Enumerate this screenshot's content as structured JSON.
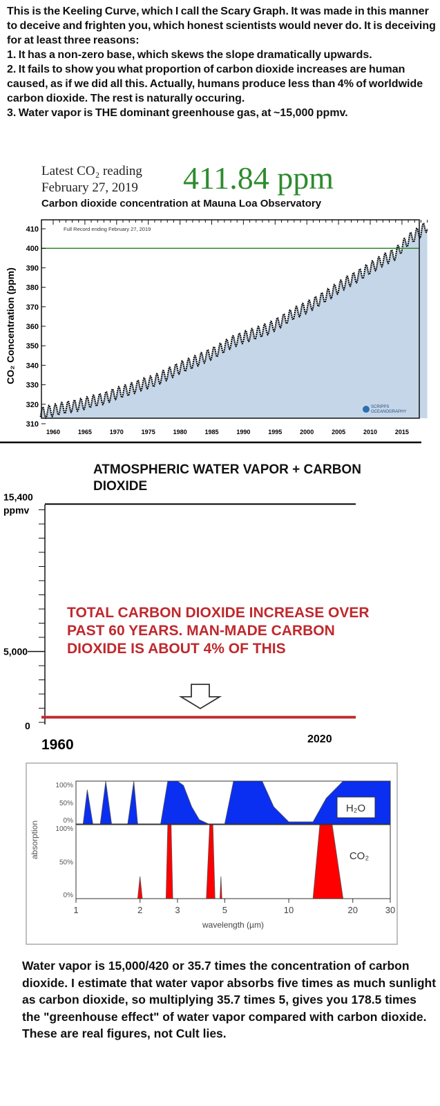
{
  "intro": {
    "lines": [
      " This is the Keeling Curve, which I call the Scary Graph. It was made in this manner to deceive and frighten you, which honest scientists would never do.  It is deceiving for at least three reasons:",
      "   1.  It has a non-zero base, which skews the slope dramatically upwards.",
      "   2.  It fails to show you what proportion of carbon dioxide increases are human caused, as if we did all this.  Actually, humans produce less than 4% of worldwide carbon dioxide. The rest is naturally occuring.",
      "   3.  Water vapor is THE dominant greenhouse gas, at ~15,000 ppmv."
    ]
  },
  "keeling_header": {
    "latest_label": "Latest CO₂ reading",
    "date": "February 27, 2019",
    "reading": "411.84 ppm",
    "reading_color": "#2e8b2e"
  },
  "chart_data": [
    {
      "type": "area",
      "title": "Carbon dioxide concentration at Mauna Loa Observatory",
      "annotation": "Full Record ending February 27, 2019",
      "ylabel": "CO₂ Concentration (ppm)",
      "xlabel": "",
      "ylim": [
        310,
        413
      ],
      "xlim": [
        1958,
        2019.2
      ],
      "yticks": [
        "310",
        "320",
        "330",
        "340",
        "350",
        "360",
        "370",
        "380",
        "390",
        "400",
        "410"
      ],
      "xticks": [
        "1960",
        "1965",
        "1970",
        "1975",
        "1980",
        "1985",
        "1990",
        "1995",
        "2000",
        "2005",
        "2010",
        "2015"
      ],
      "reference_line": {
        "value": 400,
        "color": "#2e8b2e"
      },
      "fill_color": "#c5d6e8",
      "seasonal_amplitude_ppm": 3,
      "series": [
        {
          "x": [
            1958,
            1960,
            1962,
            1964,
            1966,
            1968,
            1970,
            1972,
            1974,
            1976,
            1978,
            1980,
            1982,
            1984,
            1986,
            1988,
            1990,
            1992,
            1994,
            1996,
            1998,
            2000,
            2002,
            2004,
            2006,
            2008,
            2010,
            2012,
            2014,
            2016,
            2018,
            2019
          ],
          "y": [
            315.3,
            316.9,
            318.4,
            319.6,
            321.4,
            323.0,
            325.7,
            327.5,
            330.2,
            332.1,
            335.4,
            338.8,
            341.4,
            344.4,
            347.6,
            351.6,
            354.4,
            356.5,
            358.9,
            362.6,
            366.7,
            369.7,
            373.5,
            377.7,
            382.1,
            385.7,
            389.9,
            393.9,
            397.2,
            404.4,
            408.7,
            411.8
          ]
        }
      ],
      "logo": "Scripps Institution of Oceanography"
    },
    {
      "type": "line",
      "title": "ATMOSPHERIC WATER VAPOR + CARBON DIOXIDE",
      "ylim": [
        0,
        15400
      ],
      "yticks": [
        "15,400 ppmv",
        "5,000",
        "0"
      ],
      "xticks": [
        "1960",
        "2020"
      ],
      "series": [
        {
          "x": [
            1960,
            2020
          ],
          "y": [
            15400,
            15400
          ],
          "color": "#000000"
        },
        {
          "x": [
            1960,
            2020
          ],
          "y": [
            317,
            317
          ],
          "color": "#c0282d"
        },
        {
          "x": [
            1960,
            2020
          ],
          "y": [
            411,
            411
          ],
          "color": "#c0282d"
        }
      ],
      "annotation": "TOTAL CARBON DIOXIDE INCREASE OVER PAST 60 YEARS.  MAN-MADE CARBON DIOXIDE IS ABOUT 4% OF THIS",
      "annotation_color": "#c0282d"
    },
    {
      "type": "area",
      "xlabel": "wavelength (µm)",
      "ylabel": "absorption",
      "xscale": "log",
      "xlim": [
        1,
        30
      ],
      "xticks": [
        "1",
        "2",
        "3",
        "5",
        "10",
        "20",
        "30"
      ],
      "yticks": [
        "100%",
        "50%",
        "0%"
      ],
      "series": [
        {
          "name": "H₂O",
          "color": "#0a2ff0",
          "x": [
            1,
            1.08,
            1.13,
            1.2,
            1.3,
            1.38,
            1.47,
            1.75,
            1.87,
            1.95,
            2.5,
            2.7,
            3.0,
            3.2,
            3.5,
            3.8,
            4.2,
            5.0,
            5.5,
            7.5,
            8.5,
            10,
            13,
            15,
            18,
            30
          ],
          "y": [
            0,
            0,
            80,
            0,
            0,
            100,
            0,
            0,
            100,
            0,
            0,
            100,
            100,
            90,
            40,
            10,
            0,
            0,
            100,
            100,
            40,
            5,
            5,
            60,
            100,
            100
          ]
        },
        {
          "name": "CO₂",
          "color": "#ff0000",
          "x": [
            1,
            1.95,
            2.0,
            2.05,
            2.65,
            2.7,
            2.8,
            2.85,
            4.1,
            4.25,
            4.4,
            4.5,
            4.75,
            4.8,
            4.85,
            13,
            14,
            16,
            18,
            30
          ],
          "y": [
            0,
            0,
            30,
            0,
            0,
            100,
            100,
            0,
            0,
            100,
            100,
            0,
            0,
            30,
            0,
            0,
            100,
            100,
            0,
            0
          ]
        }
      ]
    }
  ],
  "outro": {
    "lines": [
      "Water vapor is 15,000/420 or 35.7 times the concentration of carbon dioxide.  I estimate that water vapor absorbs  five times as much sunlight as carbon dioxide, so multiplying 35.7 times 5, gives you 178.5 times the \"greenhouse effect\" of water vapor compared with carbon dioxide.  These are real figures, not Cult lies."
    ]
  }
}
